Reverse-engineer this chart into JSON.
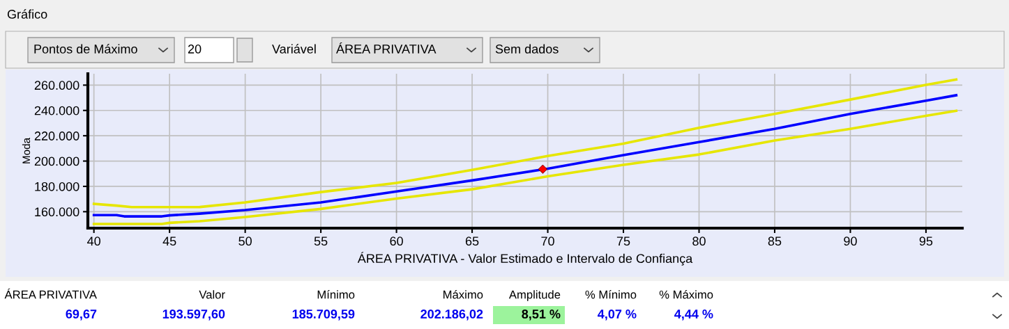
{
  "chart_data": {
    "type": "line",
    "xlabel": "ÁREA PRIVATIVA - Valor Estimado e Intervalo de Confiança",
    "ylabel": "Moda",
    "xlim": [
      39.6,
      97.4
    ],
    "ylim": [
      147000,
      269000
    ],
    "xticks": [
      40,
      45,
      50,
      55,
      60,
      65,
      70,
      75,
      80,
      85,
      90,
      95
    ],
    "yticks": [
      {
        "value": 160000,
        "label": "160.000"
      },
      {
        "value": 180000,
        "label": "180.000"
      },
      {
        "value": 200000,
        "label": "200.000"
      },
      {
        "value": 220000,
        "label": "220.000"
      },
      {
        "value": 240000,
        "label": "240.000"
      },
      {
        "value": 260000,
        "label": "260.000"
      }
    ],
    "grid": true,
    "legend": false,
    "series": [
      {
        "color": "#e6e600",
        "x": [
          40,
          41.5,
          42.5,
          45,
          47,
          50,
          55,
          60,
          65,
          70,
          75,
          80,
          85,
          90,
          95,
          97
        ],
        "values": [
          166200,
          164800,
          163600,
          163600,
          163700,
          167300,
          175500,
          182700,
          193000,
          204000,
          213800,
          226300,
          237300,
          248600,
          260200,
          264400
        ]
      },
      {
        "color": "#0000ff",
        "x": [
          40,
          41.5,
          42,
          44.5,
          45,
          47,
          50,
          55,
          60,
          65,
          70,
          75,
          80,
          85,
          90,
          95,
          97
        ],
        "values": [
          157300,
          157300,
          156300,
          156300,
          157100,
          158500,
          161300,
          167300,
          176000,
          184700,
          194000,
          204700,
          215000,
          225400,
          237300,
          247700,
          252000
        ]
      },
      {
        "color": "#e6e600",
        "x": [
          40,
          44.5,
          45,
          47,
          50,
          55,
          60,
          65,
          70,
          75,
          80,
          85,
          90,
          95,
          97
        ],
        "values": [
          150300,
          150300,
          151200,
          152500,
          155800,
          162200,
          170400,
          177700,
          187900,
          197000,
          205200,
          216200,
          225400,
          235800,
          239700
        ]
      },
      {
        "type": "scatter",
        "marker": "diamond",
        "color": "#ff0000",
        "x": [
          69.67
        ],
        "values": [
          193597.6
        ]
      }
    ],
    "annotations": [
      "Gráfico",
      "Pontos de Máximo",
      "20",
      "Variável",
      "ÁREA PRIVATIVA",
      "Sem dados",
      "ÁREA PRIVATIVA",
      "Valor",
      "Mínimo",
      "Máximo",
      "Amplitude",
      "% Mínimo",
      "% Máximo",
      "69,67",
      "193.597,60",
      "185.709,59",
      "202.186,02",
      "8,51 %",
      "4,07 %",
      "4,44 %"
    ]
  }
}
